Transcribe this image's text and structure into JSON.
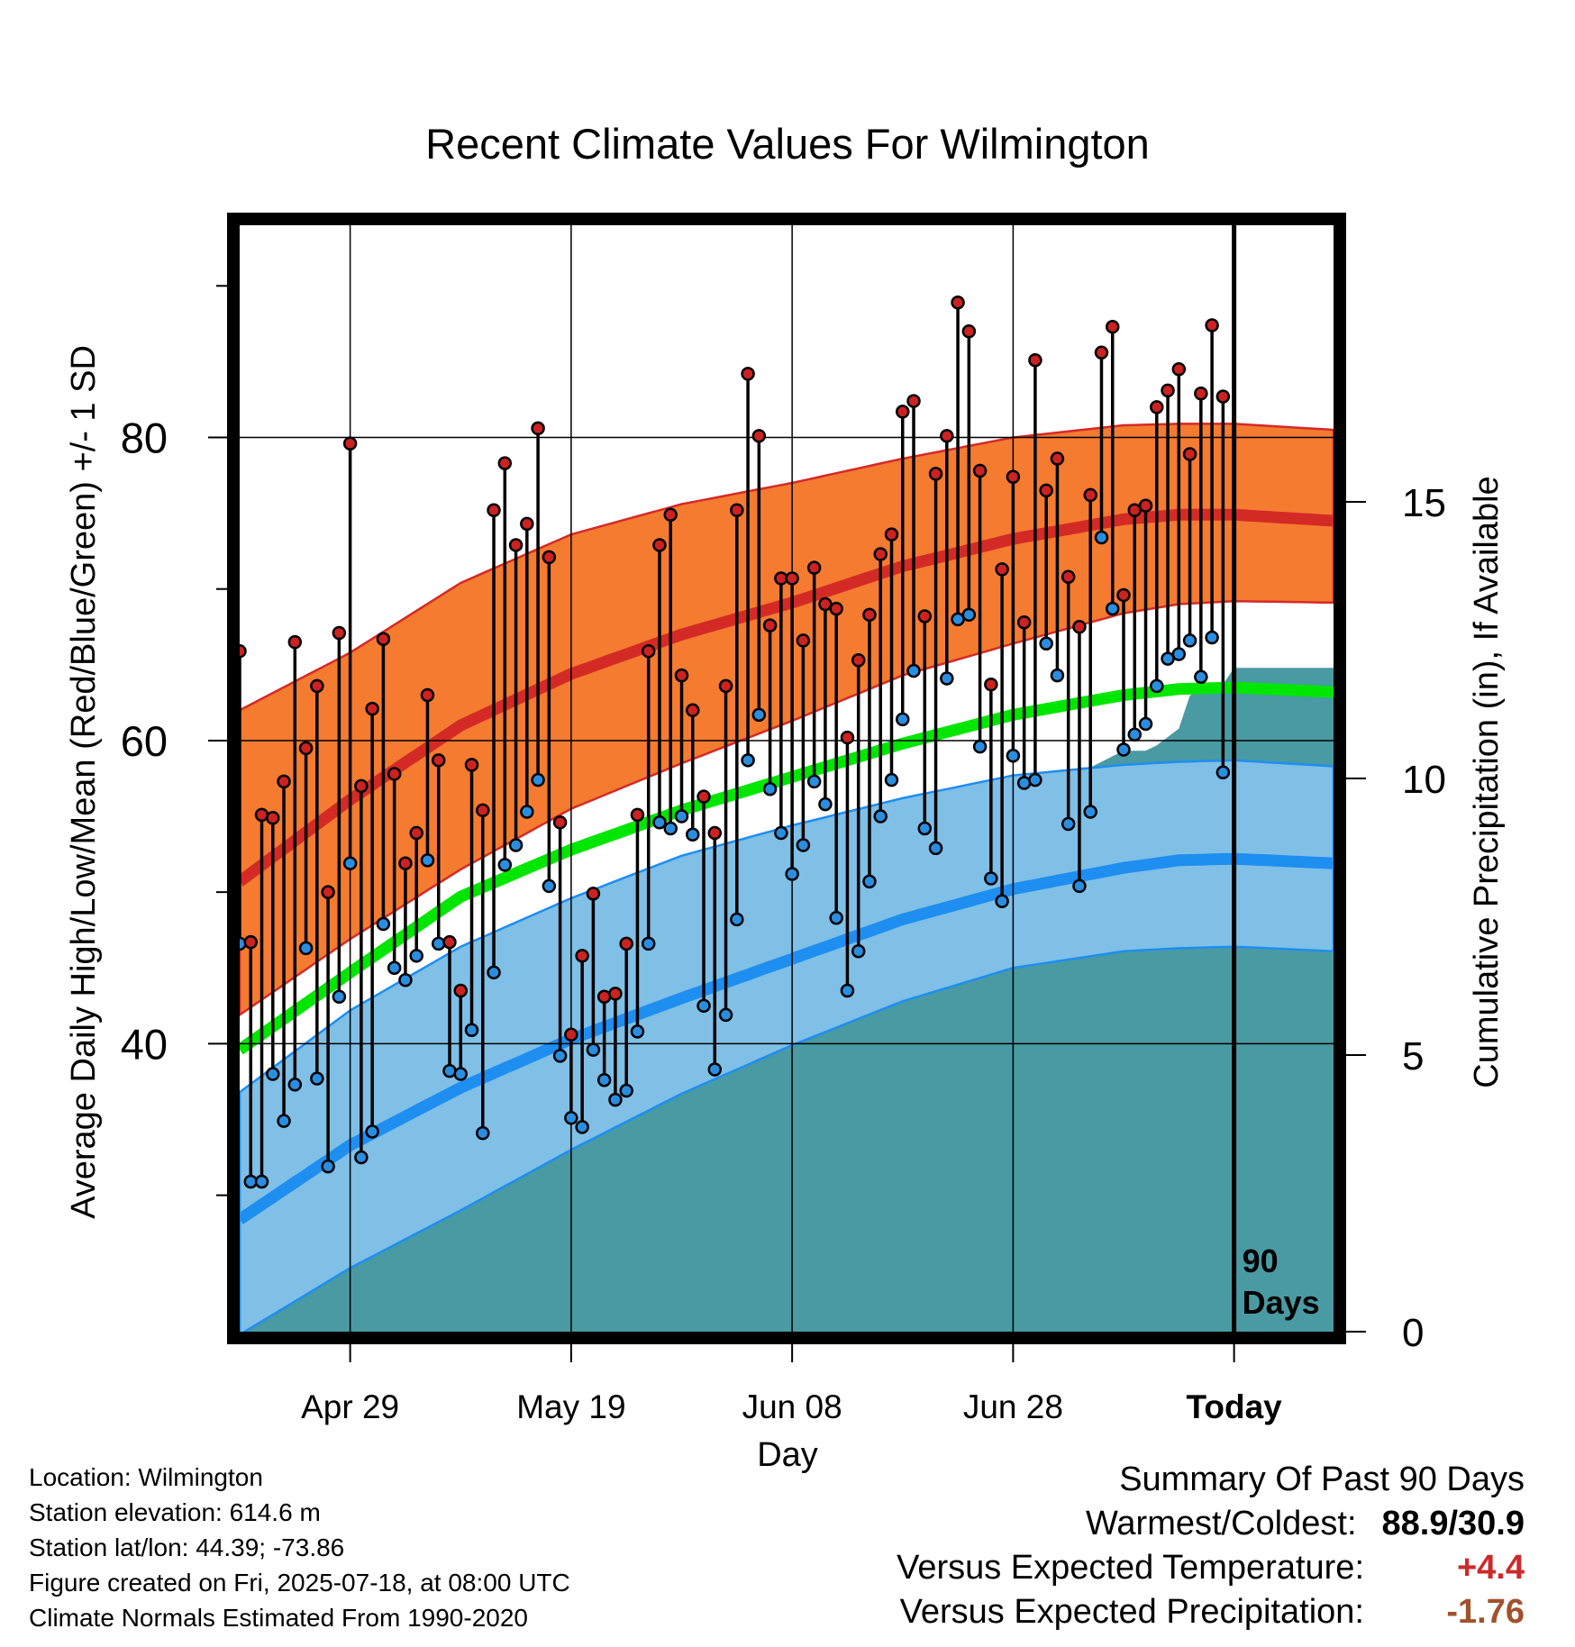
{
  "title": "Recent Climate Values For Wilmington",
  "info": {
    "location": "Location: Wilmington",
    "elevation": "Station elevation: 614.6 m",
    "latlon": "Station lat/lon: 44.39; -73.86",
    "created": "Figure created on Fri, 2025-07-18, at 08:00 UTC",
    "normals": "Climate Normals Estimated From 1990-2020"
  },
  "summary": {
    "heading": "Summary Of Past 90 Days",
    "warm_cold_label": "Warmest/Coldest:",
    "warm_cold_value": "88.9/30.9",
    "temp_label": "Versus Expected Temperature:",
    "temp_value": "+4.4",
    "precip_label": "Versus Expected Precipitation:",
    "precip_value": "-1.76"
  },
  "colors": {
    "high_band": "#f47b30",
    "high_mean": "#d42a26",
    "mean_line": "#00e600",
    "low_band": "#80bfe6",
    "low_mean": "#1e8ef0",
    "precip": "#4a9aa3",
    "high_dot": "#cc2222",
    "low_dot": "#2a8ee0"
  },
  "chart_data": {
    "type": "line",
    "title": "Recent Climate Values For Wilmington",
    "xlabel": "Day",
    "ylabel": "Average Daily High/Low/Mean (Red/Blue/Green) +/- 1 SD",
    "y2label": "Cumulative Precipitation (in), If Available",
    "xlim": [
      -90,
      9
    ],
    "ylim": [
      21,
      94
    ],
    "y2lim": [
      0,
      20
    ],
    "x_ticks": [
      {
        "x": -80,
        "label": "Apr 29"
      },
      {
        "x": -60,
        "label": "May 19"
      },
      {
        "x": -40,
        "label": "Jun 08"
      },
      {
        "x": -20,
        "label": "Jun 28"
      },
      {
        "x": 0,
        "label": "Today"
      }
    ],
    "y_ticks": [
      40,
      60,
      80
    ],
    "y_minor_ticks": [
      30,
      50,
      70,
      90
    ],
    "y2_ticks": [
      0,
      5,
      10,
      15
    ],
    "today_marker": {
      "x": 0,
      "label_line1": "90",
      "label_line2": "Days"
    },
    "grid": true,
    "normals": {
      "x": [
        -90,
        -80,
        -70,
        -60,
        -50,
        -40,
        -30,
        -20,
        -10,
        -5,
        0,
        9
      ],
      "high_mean": [
        50.7,
        56.1,
        61.0,
        64.4,
        67.0,
        69.1,
        71.5,
        73.3,
        74.6,
        74.9,
        74.9,
        74.5
      ],
      "high_upper": [
        62.0,
        65.8,
        70.4,
        73.6,
        75.6,
        77.0,
        78.6,
        80.0,
        80.8,
        80.9,
        80.9,
        80.5
      ],
      "high_lower": [
        41.9,
        46.9,
        51.5,
        55.5,
        58.5,
        61.3,
        64.3,
        66.4,
        68.4,
        69.0,
        69.2,
        69.1
      ],
      "mean": [
        39.6,
        44.7,
        49.7,
        52.8,
        55.4,
        57.6,
        59.8,
        61.7,
        63.0,
        63.4,
        63.5,
        63.2
      ],
      "low_mean": [
        28.4,
        33.3,
        37.1,
        40.3,
        43.0,
        45.6,
        48.2,
        50.2,
        51.6,
        52.1,
        52.2,
        51.9
      ],
      "low_upper": [
        36.8,
        42.2,
        46.4,
        49.6,
        52.4,
        54.4,
        56.2,
        57.7,
        58.4,
        58.6,
        58.7,
        58.3
      ],
      "low_lower": [
        20.8,
        25.2,
        29.0,
        33.0,
        36.7,
        39.9,
        42.8,
        45.0,
        46.1,
        46.3,
        46.4,
        46.1
      ]
    },
    "series": [
      {
        "name": "High",
        "x": [
          -90,
          -89,
          -88,
          -87,
          -86,
          -85,
          -84,
          -83,
          -82,
          -81,
          -80,
          -79,
          -78,
          -77,
          -76,
          -75,
          -74,
          -73,
          -72,
          -71,
          -70,
          -69,
          -68,
          -67,
          -66,
          -65,
          -64,
          -63,
          -62,
          -61,
          -60,
          -59,
          -58,
          -57,
          -56,
          -55,
          -54,
          -53,
          -52,
          -51,
          -50,
          -49,
          -48,
          -47,
          -46,
          -45,
          -44,
          -43,
          -42,
          -41,
          -40,
          -39,
          -38,
          -37,
          -36,
          -35,
          -34,
          -33,
          -32,
          -31,
          -30,
          -29,
          -28,
          -27,
          -26,
          -25,
          -24,
          -23,
          -22,
          -21,
          -20,
          -19,
          -18,
          -17,
          -16,
          -15,
          -14,
          -13,
          -12,
          -11,
          -10,
          -9,
          -8,
          -7,
          -6,
          -5,
          -4,
          -3,
          -2,
          -1
        ],
        "values": [
          65.9,
          46.7,
          55.1,
          54.9,
          57.3,
          66.5,
          59.5,
          63.6,
          50.0,
          67.1,
          79.6,
          57.0,
          62.1,
          66.7,
          57.8,
          51.9,
          53.9,
          63.0,
          58.7,
          46.7,
          43.5,
          58.4,
          55.4,
          75.2,
          78.3,
          72.9,
          74.3,
          80.6,
          72.1,
          54.6,
          40.6,
          45.8,
          49.9,
          43.1,
          43.3,
          46.6,
          55.1,
          65.9,
          72.9,
          74.9,
          64.3,
          62.0,
          56.3,
          53.9,
          63.6,
          75.2,
          84.2,
          80.1,
          67.6,
          70.7,
          70.7,
          66.6,
          71.4,
          69.0,
          68.7,
          60.2,
          65.3,
          68.3,
          72.3,
          73.6,
          81.7,
          82.4,
          68.2,
          77.6,
          80.1,
          88.9,
          87.0,
          77.8,
          63.7,
          71.3,
          77.4,
          67.8,
          85.1,
          76.5,
          78.6,
          70.8,
          67.5,
          76.2,
          85.6,
          87.3,
          69.6,
          75.2,
          75.5,
          82.0,
          83.1,
          84.5,
          78.9,
          82.9,
          87.4,
          82.7
        ]
      },
      {
        "name": "Low",
        "x": [
          -90,
          -89,
          -88,
          -87,
          -86,
          -85,
          -84,
          -83,
          -82,
          -81,
          -80,
          -79,
          -78,
          -77,
          -76,
          -75,
          -74,
          -73,
          -72,
          -71,
          -70,
          -69,
          -68,
          -67,
          -66,
          -65,
          -64,
          -63,
          -62,
          -61,
          -60,
          -59,
          -58,
          -57,
          -56,
          -55,
          -54,
          -53,
          -52,
          -51,
          -50,
          -49,
          -48,
          -47,
          -46,
          -45,
          -44,
          -43,
          -42,
          -41,
          -40,
          -39,
          -38,
          -37,
          -36,
          -35,
          -34,
          -33,
          -32,
          -31,
          -30,
          -29,
          -28,
          -27,
          -26,
          -25,
          -24,
          -23,
          -22,
          -21,
          -20,
          -19,
          -18,
          -17,
          -16,
          -15,
          -14,
          -13,
          -12,
          -11,
          -10,
          -9,
          -8,
          -7,
          -6,
          -5,
          -4,
          -3,
          -2,
          -1
        ],
        "values": [
          46.6,
          30.9,
          30.9,
          38.0,
          34.9,
          37.3,
          46.3,
          37.7,
          31.9,
          43.1,
          51.9,
          32.5,
          34.2,
          47.9,
          45.0,
          44.2,
          45.8,
          52.1,
          46.6,
          38.2,
          38.0,
          40.9,
          34.1,
          44.7,
          51.8,
          53.1,
          55.3,
          57.4,
          50.4,
          39.2,
          35.1,
          34.5,
          39.6,
          37.6,
          36.3,
          36.9,
          40.8,
          46.6,
          54.6,
          54.2,
          55.0,
          53.8,
          42.5,
          38.3,
          41.9,
          48.2,
          58.7,
          61.7,
          56.8,
          53.9,
          51.2,
          53.1,
          57.3,
          55.8,
          48.3,
          43.5,
          46.1,
          50.7,
          55.0,
          57.4,
          61.4,
          64.6,
          54.2,
          52.9,
          64.1,
          68.0,
          68.3,
          59.6,
          50.9,
          49.4,
          59.0,
          57.2,
          57.4,
          66.4,
          64.3,
          54.5,
          50.4,
          55.3,
          73.4,
          68.7,
          59.4,
          60.4,
          61.1,
          63.6,
          65.4,
          65.7,
          66.6,
          64.2,
          66.8,
          57.9
        ]
      },
      {
        "name": "Precipitation",
        "x": [
          -90,
          -84,
          -81,
          -80,
          -78,
          -76,
          -74,
          -70,
          -69,
          -64,
          -62,
          -61,
          -58,
          -57,
          -55,
          -54,
          -48,
          -47,
          -44,
          -42,
          -40,
          -39,
          -37,
          -36,
          -35,
          -33,
          -32,
          -30,
          -29,
          -28,
          -26,
          -25,
          -23,
          -22,
          -19,
          -18,
          -17,
          -16,
          -15,
          -14,
          -13,
          -11,
          -10,
          -8,
          -7,
          -5,
          -4,
          -3,
          -1,
          0,
          9
        ],
        "values": [
          0.8,
          0.8,
          1.6,
          2.0,
          2.3,
          2.5,
          3.1,
          3.5,
          4.3,
          4.4,
          5.2,
          5.8,
          6.0,
          6.3,
          7.0,
          7.1,
          7.1,
          8.2,
          8.2,
          8.5,
          8.5,
          8.6,
          8.8,
          8.8,
          8.8,
          8.9,
          8.9,
          8.9,
          9.2,
          9.2,
          9.4,
          9.6,
          9.6,
          9.6,
          9.8,
          9.9,
          9.9,
          10.0,
          10.1,
          10.2,
          10.2,
          10.4,
          10.5,
          10.5,
          10.6,
          10.9,
          11.5,
          11.6,
          11.7,
          12.0,
          12.0
        ]
      }
    ]
  }
}
